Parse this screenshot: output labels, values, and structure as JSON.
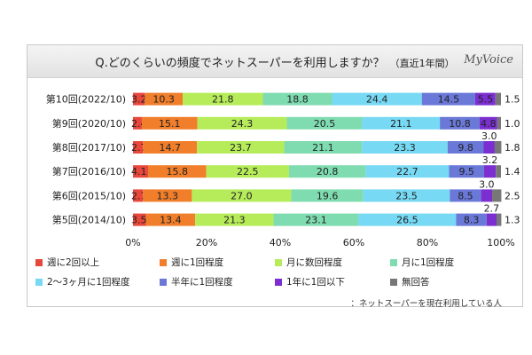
{
  "header": {
    "title": "Q.どのくらいの頻度でネットスーパーを利用しますか？",
    "subtitle": "（直近1年間）",
    "brand": "MyVoice"
  },
  "footnote": "：ネットスーパーを現在利用している人",
  "chart_data": {
    "type": "bar",
    "orientation": "horizontal",
    "stacked": true,
    "percent": true,
    "categories": [
      "第10回(2022/10)",
      "第9回(2020/10)",
      "第8回(2017/10)",
      "第7回(2016/10)",
      "第6回(2015/10)",
      "第5回(2014/10)"
    ],
    "x_ticks": [
      "0%",
      "20%",
      "40%",
      "60%",
      "80%",
      "100%"
    ],
    "xlim": [
      0,
      100
    ],
    "grid": false,
    "legend_position": "bottom",
    "series": [
      {
        "name": "週に2回以上",
        "color": "#e8473c",
        "values": [
          3.2,
          2.4,
          2.7,
          4.1,
          2.7,
          3.5
        ]
      },
      {
        "name": "週に1回程度",
        "color": "#f07e2a",
        "values": [
          10.3,
          15.1,
          14.7,
          15.8,
          13.3,
          13.4
        ]
      },
      {
        "name": "月に数回程度",
        "color": "#b6ec5a",
        "values": [
          21.8,
          24.3,
          23.7,
          22.5,
          27.0,
          21.3
        ]
      },
      {
        "name": "月に1回程度",
        "color": "#7fdcb0",
        "values": [
          18.8,
          20.5,
          21.1,
          20.8,
          19.6,
          23.1
        ]
      },
      {
        "name": "2～3ヶ月に1回程度",
        "color": "#77d9f4",
        "values": [
          24.4,
          21.1,
          23.3,
          22.7,
          23.5,
          26.5
        ]
      },
      {
        "name": "半年に1回程度",
        "color": "#6a78d8",
        "values": [
          14.5,
          10.8,
          9.8,
          9.5,
          8.5,
          8.3
        ]
      },
      {
        "name": "1年に1回以下",
        "color": "#7b2fd1",
        "values": [
          5.5,
          4.8,
          3.0,
          3.2,
          3.0,
          2.7
        ]
      },
      {
        "name": "無回答",
        "color": "#777777",
        "values": [
          1.5,
          1.0,
          1.8,
          1.4,
          2.5,
          1.3
        ]
      }
    ]
  }
}
